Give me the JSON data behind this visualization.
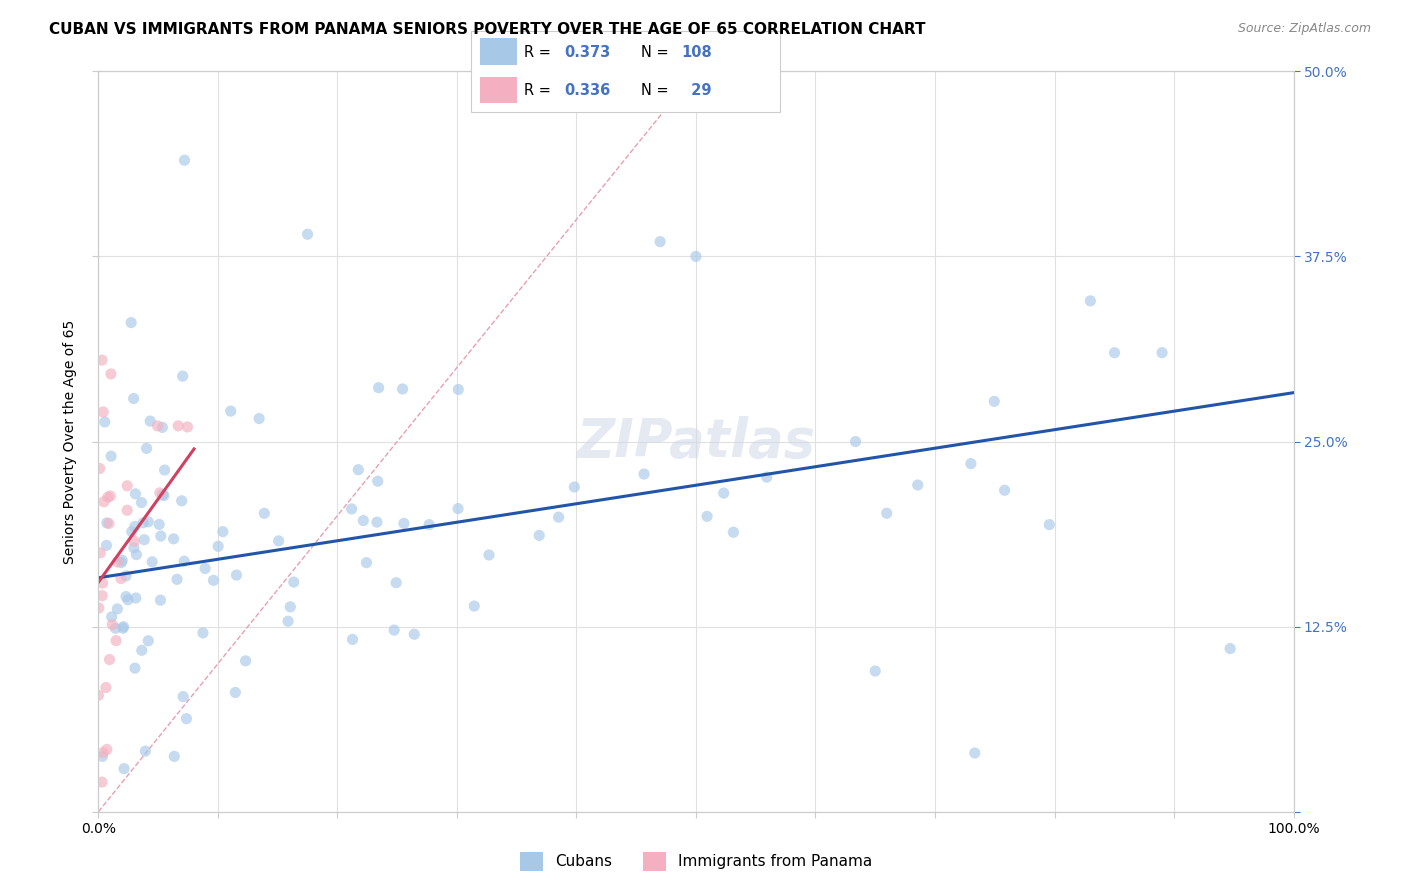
{
  "title": "CUBAN VS IMMIGRANTS FROM PANAMA SENIORS POVERTY OVER THE AGE OF 65 CORRELATION CHART",
  "source": "Source: ZipAtlas.com",
  "ylabel": "Seniors Poverty Over the Age of 65",
  "xlim": [
    0,
    1.0
  ],
  "ylim": [
    0,
    0.5
  ],
  "xticks": [
    0.0,
    0.1,
    0.2,
    0.3,
    0.4,
    0.5,
    0.6,
    0.7,
    0.8,
    0.9,
    1.0
  ],
  "yticks": [
    0.0,
    0.125,
    0.25,
    0.375,
    0.5
  ],
  "cubans_R": 0.373,
  "cubans_N": 108,
  "panama_R": 0.336,
  "panama_N": 29,
  "color_cubans": "#a8c8e8",
  "color_cubans_line": "#2255aa",
  "color_panama": "#f4b0c0",
  "color_panama_line": "#d04060",
  "color_diagonal": "#e8a0b0",
  "marker_size": 65,
  "alpha_scatter": 0.65,
  "background_color": "#ffffff",
  "grid_color": "#e0e0e0",
  "watermark": "ZIPatlas",
  "legend_cubans_label": "Cubans",
  "legend_panama_label": "Immigrants from Panama",
  "title_fontsize": 11,
  "source_fontsize": 9,
  "axis_label_fontsize": 10,
  "tick_fontsize": 10,
  "legend_fontsize": 11,
  "tick_color_right": "#4472c4",
  "cuba_line_x": [
    0.0,
    1.0
  ],
  "cuba_line_y": [
    0.158,
    0.283
  ],
  "pan_line_x": [
    0.0,
    0.08
  ],
  "pan_line_y": [
    0.155,
    0.245
  ]
}
